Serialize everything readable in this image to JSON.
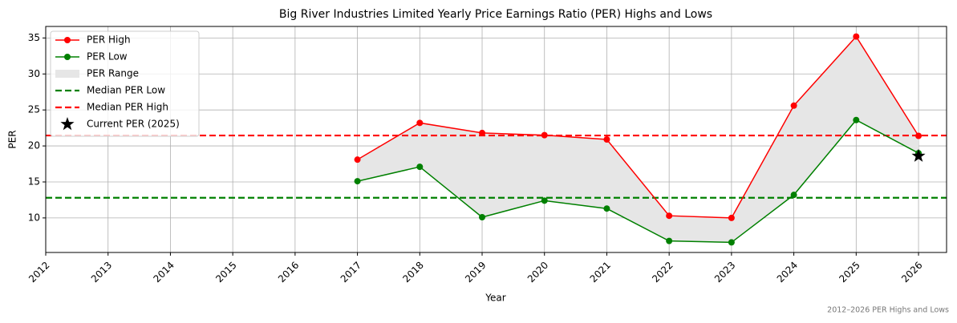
{
  "chart_data": {
    "type": "line",
    "title": "Big River Industries Limited Yearly Price Earnings Ratio (PER) Highs and Lows",
    "xlabel": "Year",
    "ylabel": "PER",
    "note": "2012–2026 PER Highs and Lows",
    "x": [
      2017,
      2018,
      2019,
      2020,
      2021,
      2022,
      2023,
      2024,
      2025,
      2026
    ],
    "series": [
      {
        "name": "PER High",
        "color": "#ff0000",
        "values": [
          18.1,
          23.2,
          21.8,
          21.5,
          20.9,
          10.3,
          10.0,
          25.6,
          35.2,
          21.4
        ]
      },
      {
        "name": "PER Low",
        "color": "#008000",
        "values": [
          15.1,
          17.1,
          10.1,
          12.4,
          11.3,
          6.8,
          6.6,
          13.2,
          23.6,
          19.0
        ]
      }
    ],
    "range": {
      "name": "PER Range",
      "color": "#e6e6e6"
    },
    "hlines": [
      {
        "name": "Median PER Low",
        "value": 12.8,
        "color": "#008000"
      },
      {
        "name": "Median PER High",
        "value": 21.45,
        "color": "#ff0000"
      }
    ],
    "current": {
      "name": "Current PER (2025)",
      "x": 2026,
      "value": 18.6,
      "color": "#000000"
    },
    "xlim": [
      2012,
      2026.45
    ],
    "ylim": [
      5.2,
      36.6
    ],
    "xticks": [
      2012,
      2013,
      2014,
      2015,
      2016,
      2017,
      2018,
      2019,
      2020,
      2021,
      2022,
      2023,
      2024,
      2025,
      2026
    ],
    "yticks": [
      10,
      15,
      20,
      25,
      30,
      35
    ],
    "grid": true,
    "legend": "upper left"
  }
}
